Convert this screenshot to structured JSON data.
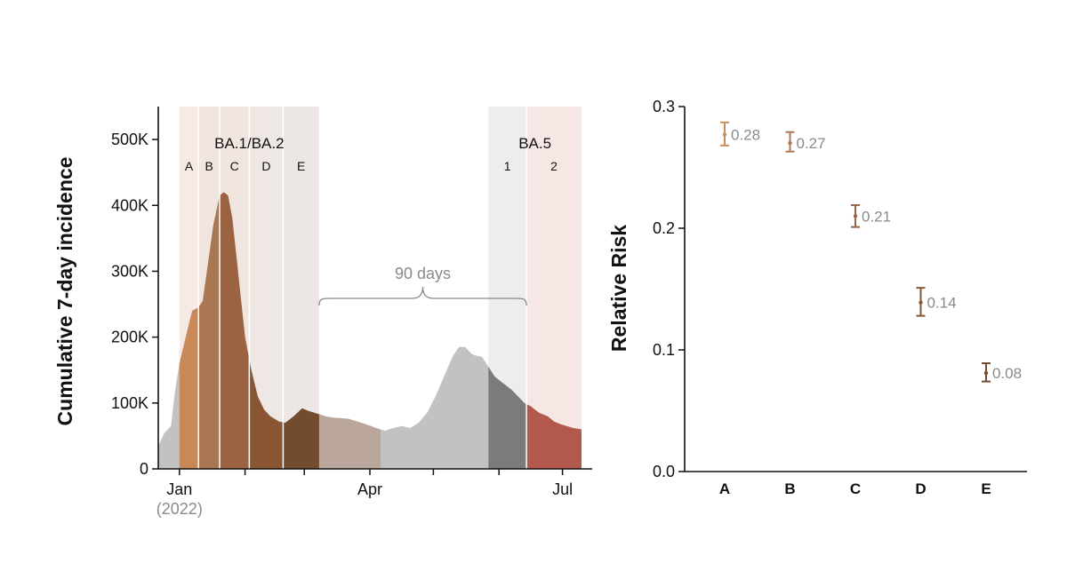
{
  "chart_data": [
    {
      "type": "area",
      "ylabel": "Cumulative 7-day incidence",
      "ylim": [
        0,
        550000
      ],
      "y_ticks": [
        {
          "value": 0,
          "label": "0"
        },
        {
          "value": 100000,
          "label": "100K"
        },
        {
          "value": 200000,
          "label": "200K"
        },
        {
          "value": 300000,
          "label": "300K"
        },
        {
          "value": 400000,
          "label": "400K"
        },
        {
          "value": 500000,
          "label": "500K"
        }
      ],
      "x_start": "2021-12-22",
      "x_end": "2022-07-10",
      "x_ticks": [
        {
          "date": "2022-01-01",
          "label": "Jan"
        },
        {
          "date": "2022-02-01",
          "label": ""
        },
        {
          "date": "2022-03-01",
          "label": ""
        },
        {
          "date": "2022-04-01",
          "label": "Apr"
        },
        {
          "date": "2022-05-01",
          "label": ""
        },
        {
          "date": "2022-06-01",
          "label": ""
        },
        {
          "date": "2022-07-01",
          "label": "Jul"
        }
      ],
      "x_sublabel": "(2022)",
      "series": {
        "x": [
          "2021-12-22",
          "2021-12-25",
          "2021-12-28",
          "2021-12-30",
          "2022-01-01",
          "2022-01-04",
          "2022-01-07",
          "2022-01-10",
          "2022-01-12",
          "2022-01-14",
          "2022-01-17",
          "2022-01-20",
          "2022-01-22",
          "2022-01-24",
          "2022-01-26",
          "2022-01-28",
          "2022-01-30",
          "2022-02-01",
          "2022-02-04",
          "2022-02-07",
          "2022-02-10",
          "2022-02-13",
          "2022-02-17",
          "2022-02-20",
          "2022-02-24",
          "2022-02-28",
          "2022-03-03",
          "2022-03-07",
          "2022-03-11",
          "2022-03-14",
          "2022-03-18",
          "2022-03-22",
          "2022-03-26",
          "2022-03-30",
          "2022-04-04",
          "2022-04-08",
          "2022-04-12",
          "2022-04-16",
          "2022-04-20",
          "2022-04-24",
          "2022-04-28",
          "2022-05-02",
          "2022-05-06",
          "2022-05-10",
          "2022-05-13",
          "2022-05-16",
          "2022-05-19",
          "2022-05-21",
          "2022-05-24",
          "2022-05-27",
          "2022-05-30",
          "2022-06-03",
          "2022-06-07",
          "2022-06-10",
          "2022-06-13",
          "2022-06-16",
          "2022-06-18",
          "2022-06-20",
          "2022-06-24",
          "2022-06-27",
          "2022-06-30",
          "2022-07-03",
          "2022-07-06",
          "2022-07-10"
        ],
        "values": [
          35000,
          55000,
          65000,
          120000,
          160000,
          200000,
          240000,
          245000,
          255000,
          300000,
          370000,
          415000,
          420000,
          415000,
          380000,
          320000,
          260000,
          200000,
          150000,
          110000,
          90000,
          80000,
          72000,
          70000,
          80000,
          92000,
          88000,
          84000,
          80000,
          78000,
          77000,
          76000,
          72000,
          68000,
          62000,
          58000,
          62000,
          65000,
          62000,
          70000,
          85000,
          110000,
          140000,
          170000,
          185000,
          185000,
          175000,
          172000,
          170000,
          155000,
          140000,
          130000,
          120000,
          110000,
          100000,
          95000,
          90000,
          85000,
          80000,
          72000,
          68000,
          65000,
          62000,
          60000
        ],
        "base_color": "#c2c2c2"
      },
      "periods": [
        {
          "id": "A",
          "start": "2022-01-01",
          "end": "2022-01-10",
          "color": "#c98858",
          "bg": "#f7e9e4"
        },
        {
          "id": "B",
          "start": "2022-01-10",
          "end": "2022-01-20",
          "color": "#aa7753",
          "bg": "#f1e5e0"
        },
        {
          "id": "C",
          "start": "2022-01-20",
          "end": "2022-02-03",
          "color": "#9b6341",
          "bg": "#f1e5e0"
        },
        {
          "id": "D",
          "start": "2022-02-03",
          "end": "2022-02-19",
          "color": "#8a5532",
          "bg": "#efe7e3"
        },
        {
          "id": "E",
          "start": "2022-02-19",
          "end": "2022-03-08",
          "color": "#734c30",
          "bg": "#ece7e4"
        },
        {
          "id": "1",
          "start": "2022-05-27",
          "end": "2022-06-14",
          "color": "#7b7b7b",
          "bg": "#ededed"
        },
        {
          "id": "2",
          "start": "2022-06-14",
          "end": "2022-07-10",
          "color": "#b3584c",
          "bg": "#f6e7e4"
        }
      ],
      "tan_segment": {
        "start": "2022-03-08",
        "end": "2022-04-06",
        "color": "#bba69c"
      },
      "period_labels": {
        "group1": {
          "text": "BA.1/BA.2",
          "items": [
            "A",
            "B",
            "C",
            "D",
            "E"
          ]
        },
        "group2": {
          "text": "BA.5",
          "items": [
            "1",
            "2"
          ]
        }
      },
      "annotation": {
        "text": "90 days",
        "start": "2022-03-08",
        "end": "2022-06-14"
      }
    },
    {
      "type": "scatter",
      "ylabel": "Relative Risk",
      "ylim": [
        0,
        0.3
      ],
      "y_ticks": [
        {
          "value": 0,
          "label": "0.0"
        },
        {
          "value": 0.1,
          "label": "0.1"
        },
        {
          "value": 0.2,
          "label": "0.2"
        },
        {
          "value": 0.3,
          "label": "0.3"
        }
      ],
      "categories": [
        "A",
        "B",
        "C",
        "D",
        "E"
      ],
      "points": [
        {
          "x": "A",
          "value": 0.277,
          "low": 0.268,
          "high": 0.287,
          "label": "0.28",
          "color": "#c4915e"
        },
        {
          "x": "B",
          "value": 0.27,
          "low": 0.263,
          "high": 0.279,
          "label": "0.27",
          "color": "#aa7753"
        },
        {
          "x": "C",
          "value": 0.21,
          "low": 0.201,
          "high": 0.219,
          "label": "0.21",
          "color": "#9b6341"
        },
        {
          "x": "D",
          "value": 0.139,
          "low": 0.128,
          "high": 0.151,
          "label": "0.14",
          "color": "#8a5532"
        },
        {
          "x": "E",
          "value": 0.081,
          "low": 0.074,
          "high": 0.089,
          "label": "0.08",
          "color": "#734c30"
        }
      ]
    }
  ]
}
